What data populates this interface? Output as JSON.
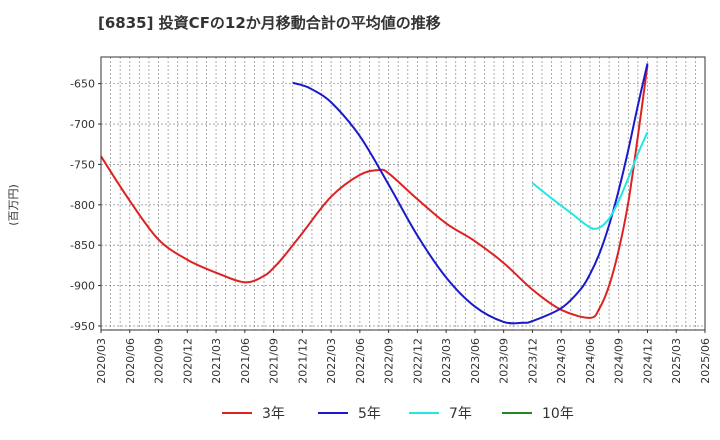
{
  "chart_data": {
    "type": "line",
    "title": "[6835]  投資CFの12か月移動合計の平均値の推移",
    "ylabel": "(百万円)",
    "xlabel": "",
    "ylim": [
      -955,
      -617
    ],
    "yticks": [
      -650,
      -700,
      -750,
      -800,
      -850,
      -900,
      -950
    ],
    "x_ticks": [
      "2020/03",
      "2020/06",
      "2020/09",
      "2020/12",
      "2021/03",
      "2021/06",
      "2021/09",
      "2021/12",
      "2022/03",
      "2022/06",
      "2022/09",
      "2022/12",
      "2023/03",
      "2023/06",
      "2023/09",
      "2023/12",
      "2024/03",
      "2024/06",
      "2024/09",
      "2024/12",
      "2025/03",
      "2025/06"
    ],
    "grid": true,
    "legend_position": "bottom",
    "series": [
      {
        "name": "3年",
        "color": "#dd2222",
        "x": [
          "2020/03",
          "2020/06",
          "2020/09",
          "2020/12",
          "2021/03",
          "2021/06",
          "2021/08",
          "2021/09",
          "2021/10",
          "2021/12",
          "2022/03",
          "2022/06",
          "2022/08",
          "2022/09",
          "2022/12",
          "2023/03",
          "2023/06",
          "2023/09",
          "2023/12",
          "2024/03",
          "2024/06",
          "2024/07",
          "2024/08",
          "2024/09",
          "2024/10",
          "2024/11",
          "2024/12"
        ],
        "values": [
          -740,
          -795,
          -843,
          -868,
          -884,
          -896,
          -888,
          -878,
          -865,
          -835,
          -790,
          -763,
          -757,
          -761,
          -793,
          -823,
          -845,
          -872,
          -905,
          -930,
          -940,
          -928,
          -900,
          -856,
          -797,
          -715,
          -627
        ]
      },
      {
        "name": "5年",
        "color": "#1a1acc",
        "x": [
          "2021/11",
          "2021/12",
          "2022/01",
          "2022/03",
          "2022/06",
          "2022/09",
          "2022/12",
          "2023/03",
          "2023/06",
          "2023/09",
          "2023/11",
          "2023/12",
          "2024/03",
          "2024/05",
          "2024/06",
          "2024/07",
          "2024/08",
          "2024/09",
          "2024/10",
          "2024/11",
          "2024/12"
        ],
        "values": [
          -649,
          -652,
          -657,
          -673,
          -715,
          -775,
          -838,
          -890,
          -926,
          -945,
          -946,
          -944,
          -928,
          -905,
          -886,
          -860,
          -825,
          -782,
          -732,
          -677,
          -625
        ]
      },
      {
        "name": "7年",
        "color": "#22e5e5",
        "x": [
          "2023/12",
          "2024/02",
          "2024/04",
          "2024/06",
          "2024/07",
          "2024/08",
          "2024/09",
          "2024/10",
          "2024/11",
          "2024/12"
        ],
        "values": [
          -773,
          -792,
          -810,
          -828,
          -828,
          -817,
          -795,
          -767,
          -737,
          -710
        ]
      },
      {
        "name": "10年",
        "color": "#228822",
        "x": [],
        "values": []
      }
    ]
  }
}
